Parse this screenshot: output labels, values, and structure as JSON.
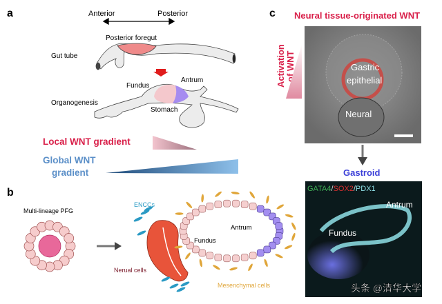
{
  "panel_a": {
    "letter": "a",
    "anterior": "Anterior",
    "posterior": "Posterior",
    "posterior_foregut": "Posterior foregut",
    "gut_tube": "Gut tube",
    "fundus": "Fundus",
    "antrum": "Antrum",
    "organogenesis": "Organogenesis",
    "stomach": "Stomach",
    "local_wnt": "Local WNT gradient",
    "global_wnt_1": "Global WNT",
    "global_wnt_2": "gradient"
  },
  "panel_b": {
    "letter": "b",
    "pfg": "Multi-lineage PFG",
    "enccs": "ENCCs",
    "neural_cells": "Nerual cells",
    "fundus": "Fundus",
    "antrum": "Antrum",
    "mesenchymal": "Mesenchymal cells"
  },
  "panel_c": {
    "letter": "c",
    "title": "Neural tissue-originated WNT",
    "activation_1": "Activation",
    "activation_2": "of WNT",
    "gastric_1": "Gastric",
    "gastric_2": "epithelial",
    "neural": "Neural",
    "gastroid": "Gastroid",
    "stain_gata4": "GATA4",
    "stain_sep1": "/",
    "stain_sox2": "SOX2",
    "stain_sep2": "/",
    "stain_pdx1": "PDX1",
    "antrum": "Antrum",
    "fundus": "Fundus"
  },
  "watermark": "头条 @清华大学",
  "colors": {
    "red": "#d9204a",
    "blue": "#5b8fc8",
    "gastroid": "#3b3fd8",
    "orange": "#e0a63a",
    "encc": "#2a9ac4",
    "neural": "#e8543a",
    "fundus_pink": "#f5cfcf",
    "antrum_purple": "#a38ef0"
  }
}
